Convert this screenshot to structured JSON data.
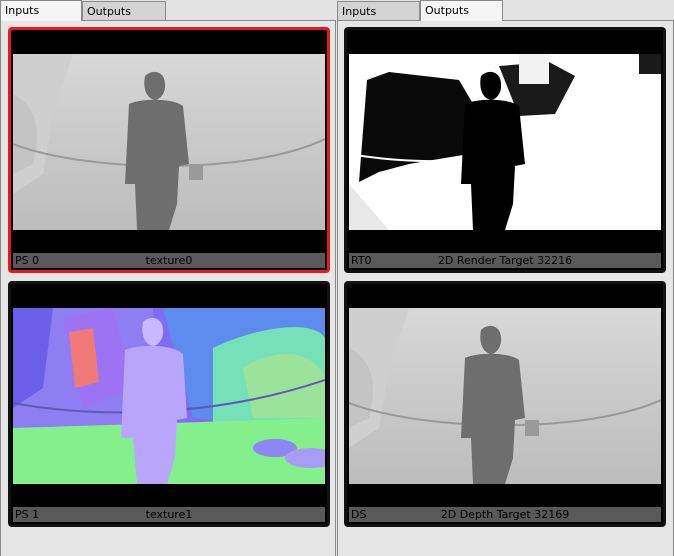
{
  "inputs_panel": {
    "tabs": [
      {
        "label": "Inputs",
        "active": true
      },
      {
        "label": "Outputs",
        "active": false
      }
    ],
    "thumbnails": [
      {
        "slot": "PS 0",
        "name": "texture0",
        "selected": true
      },
      {
        "slot": "PS 1",
        "name": "texture1",
        "selected": false
      }
    ]
  },
  "outputs_panel": {
    "tabs": [
      {
        "label": "Inputs",
        "active": false
      },
      {
        "label": "Outputs",
        "active": true
      }
    ],
    "thumbnails": [
      {
        "slot": "RT0",
        "name": "2D Render Target 32216",
        "selected": false
      },
      {
        "slot": "DS",
        "name": "2D Depth Target 32169",
        "selected": false
      }
    ]
  },
  "colors": {
    "selection_border": "#e8191a",
    "caption_bg": "#595959",
    "panel_bg": "#e6e6e6"
  }
}
